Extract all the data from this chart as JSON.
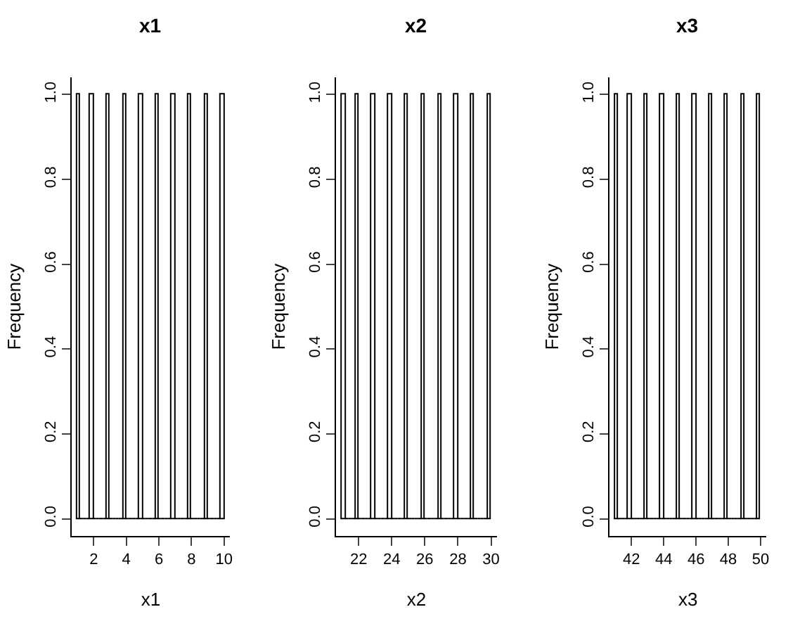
{
  "chart_data": [
    {
      "type": "histogram",
      "title": "x1",
      "xlabel": "x1",
      "ylabel": "Frequency",
      "colors": [
        "#ffffff",
        "#000000",
        "#000000",
        "#000000",
        "#ffffff",
        "#000000",
        "#000000",
        "#000000",
        "#000000",
        "#ffffff",
        "#000000",
        "#000000",
        "#000000",
        "#000000",
        "#ffffff",
        "#000000",
        "#000000",
        "#000000",
        "#000000",
        "#ffffff",
        "#000000",
        "#000000",
        "#000000",
        "#000000",
        "#ffffff",
        "#000000",
        "#000000",
        "#000000",
        "#000000",
        "#ffffff",
        "#000000",
        "#000000",
        "#000000",
        "#000000",
        "#ffffff",
        "#000000",
        "#000000",
        "#000000",
        "#000000",
        "#ffffff",
        "#000000",
        "#000000",
        "#000000",
        "#000000",
        "#ffffff"
      ],
      "bins": [
        1,
        1.2,
        1.4,
        1.6,
        1.8,
        2,
        2.2,
        2.4,
        2.6,
        2.8,
        3,
        3.2,
        3.4,
        3.6,
        3.8,
        4,
        4.2,
        4.4,
        4.6,
        4.8,
        5,
        5.2,
        5.4,
        5.6,
        5.8,
        6,
        6.2,
        6.4,
        6.6,
        6.8,
        7,
        7.2,
        7.4,
        7.6,
        7.8,
        8,
        8.2,
        8.4,
        8.6,
        8.8,
        9,
        9.2,
        9.4,
        9.6,
        9.8,
        10
      ],
      "values": [
        1,
        0,
        0,
        0,
        1,
        0,
        0,
        0,
        0,
        1,
        0,
        0,
        0,
        0,
        1,
        0,
        0,
        0,
        0,
        1,
        0,
        0,
        0,
        0,
        1,
        0,
        0,
        0,
        0,
        1,
        0,
        0,
        0,
        0,
        1,
        0,
        0,
        0,
        0,
        1,
        0,
        0,
        0,
        0,
        1
      ],
      "xlim": [
        0.64,
        10.36
      ],
      "xticks": [
        2,
        4,
        6,
        8,
        10
      ],
      "ylim": [
        -0.04,
        1.04
      ],
      "yticks": [
        {
          "value": 0,
          "label": "0.0"
        },
        {
          "value": 0.2,
          "label": "0.2"
        },
        {
          "value": 0.4,
          "label": "0.4"
        },
        {
          "value": 0.6,
          "label": "0.6"
        },
        {
          "value": 0.8,
          "label": "0.8"
        },
        {
          "value": 1,
          "label": "1.0"
        }
      ]
    },
    {
      "type": "histogram",
      "title": "x2",
      "xlabel": "x2",
      "ylabel": "Frequency",
      "colors": [
        "#ffffff",
        "#000000",
        "#000000",
        "#000000",
        "#ffffff",
        "#000000",
        "#000000",
        "#000000",
        "#000000",
        "#ffffff",
        "#000000",
        "#000000",
        "#000000",
        "#000000",
        "#ffffff",
        "#000000",
        "#000000",
        "#000000",
        "#000000",
        "#ffffff",
        "#000000",
        "#000000",
        "#000000",
        "#000000",
        "#ffffff",
        "#000000",
        "#000000",
        "#000000",
        "#000000",
        "#ffffff",
        "#000000",
        "#000000",
        "#000000",
        "#000000",
        "#ffffff",
        "#000000",
        "#000000",
        "#000000",
        "#000000",
        "#ffffff",
        "#000000",
        "#000000",
        "#000000",
        "#000000",
        "#ffffff"
      ],
      "bins": [
        21,
        21.2,
        21.4,
        21.6,
        21.8,
        22,
        22.2,
        22.4,
        22.6,
        22.8,
        23,
        23.2,
        23.4,
        23.6,
        23.8,
        24,
        24.2,
        24.4,
        24.6,
        24.8,
        25,
        25.2,
        25.4,
        25.6,
        25.8,
        26,
        26.2,
        26.4,
        26.6,
        26.8,
        27,
        27.2,
        27.4,
        27.6,
        27.8,
        28,
        28.2,
        28.4,
        28.6,
        28.8,
        29,
        29.2,
        29.4,
        29.6,
        29.8,
        30
      ],
      "values": [
        1,
        0,
        0,
        0,
        1,
        0,
        0,
        0,
        0,
        1,
        0,
        0,
        0,
        0,
        1,
        0,
        0,
        0,
        0,
        1,
        0,
        0,
        0,
        0,
        1,
        0,
        0,
        0,
        0,
        1,
        0,
        0,
        0,
        0,
        1,
        0,
        0,
        0,
        0,
        1,
        0,
        0,
        0,
        0,
        1
      ],
      "xlim": [
        20.64,
        30.36
      ],
      "xticks": [
        22,
        24,
        26,
        28,
        30
      ],
      "ylim": [
        -0.04,
        1.04
      ],
      "yticks": [
        {
          "value": 0,
          "label": "0.0"
        },
        {
          "value": 0.2,
          "label": "0.2"
        },
        {
          "value": 0.4,
          "label": "0.4"
        },
        {
          "value": 0.6,
          "label": "0.6"
        },
        {
          "value": 0.8,
          "label": "0.8"
        },
        {
          "value": 1,
          "label": "1.0"
        }
      ]
    },
    {
      "type": "histogram",
      "title": "x3",
      "xlabel": "x3",
      "ylabel": "Frequency",
      "colors": [
        "#ffffff",
        "#000000",
        "#000000",
        "#000000",
        "#ffffff",
        "#000000",
        "#000000",
        "#000000",
        "#000000",
        "#ffffff",
        "#000000",
        "#000000",
        "#000000",
        "#000000",
        "#ffffff",
        "#000000",
        "#000000",
        "#000000",
        "#000000",
        "#ffffff",
        "#000000",
        "#000000",
        "#000000",
        "#000000",
        "#ffffff",
        "#000000",
        "#000000",
        "#000000",
        "#000000",
        "#ffffff",
        "#000000",
        "#000000",
        "#000000",
        "#000000",
        "#ffffff",
        "#000000",
        "#000000",
        "#000000",
        "#000000",
        "#ffffff",
        "#000000",
        "#000000",
        "#000000",
        "#000000",
        "#ffffff"
      ],
      "bins": [
        41,
        41.2,
        41.4,
        41.6,
        41.8,
        42,
        42.2,
        42.4,
        42.6,
        42.8,
        43,
        43.2,
        43.4,
        43.6,
        43.8,
        44,
        44.2,
        44.4,
        44.6,
        44.8,
        45,
        45.2,
        45.4,
        45.6,
        45.8,
        46,
        46.2,
        46.4,
        46.6,
        46.8,
        47,
        47.2,
        47.4,
        47.6,
        47.8,
        48,
        48.2,
        48.4,
        48.6,
        48.8,
        49,
        49.2,
        49.4,
        49.6,
        49.8,
        50
      ],
      "values": [
        1,
        0,
        0,
        0,
        1,
        0,
        0,
        0,
        0,
        1,
        0,
        0,
        0,
        0,
        1,
        0,
        0,
        0,
        0,
        1,
        0,
        0,
        0,
        0,
        1,
        0,
        0,
        0,
        0,
        1,
        0,
        0,
        0,
        0,
        1,
        0,
        0,
        0,
        0,
        1,
        0,
        0,
        0,
        0,
        1
      ],
      "xlim": [
        40.64,
        50.36
      ],
      "xticks": [
        42,
        44,
        46,
        48,
        50
      ],
      "ylim": [
        -0.04,
        1.04
      ],
      "yticks": [
        {
          "value": 0,
          "label": "0.0"
        },
        {
          "value": 0.2,
          "label": "0.2"
        },
        {
          "value": 0.4,
          "label": "0.4"
        },
        {
          "value": 0.6,
          "label": "0.6"
        },
        {
          "value": 0.8,
          "label": "0.8"
        },
        {
          "value": 1,
          "label": "1.0"
        }
      ]
    }
  ]
}
